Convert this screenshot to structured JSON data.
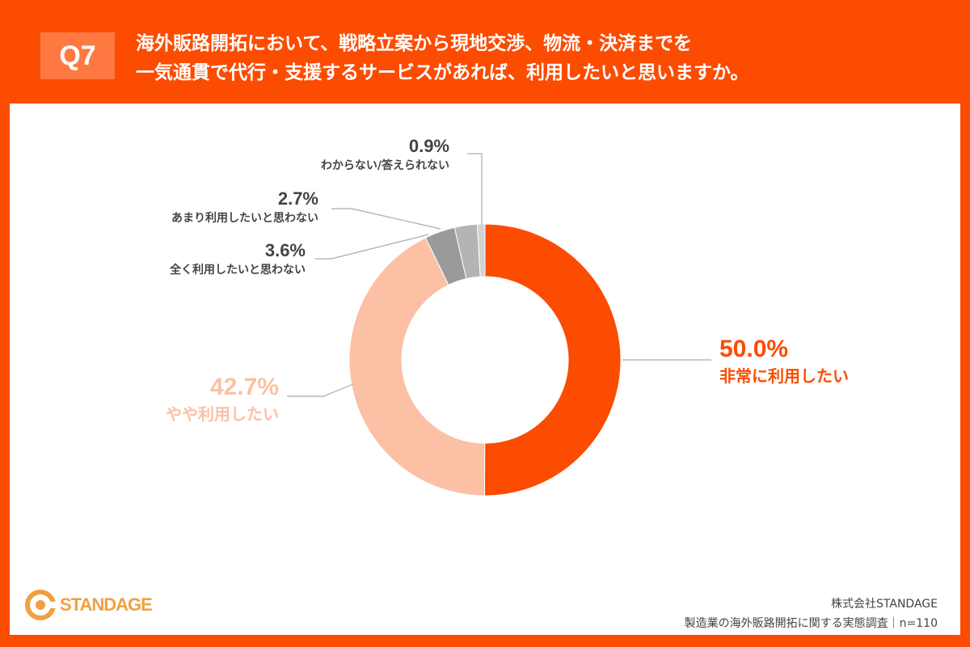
{
  "header": {
    "q": "Q7",
    "title_line1": "海外販路開拓において、戦略立案から現地交渉、物流・決済までを",
    "title_line2": "一気通貫で代行・支援するサービスがあれば、利用したいと思いますか。"
  },
  "chart_data": {
    "type": "pie",
    "donut": true,
    "categories": [
      "非常に利用したい",
      "やや利用したい",
      "全く利用したいと思わない",
      "あまり利用したいと思わない",
      "わからない/答えられない"
    ],
    "values": [
      50.0,
      42.7,
      3.6,
      2.7,
      0.9
    ],
    "labels": [
      "50.0%",
      "42.7%",
      "3.6%",
      "2.7%",
      "0.9%"
    ],
    "colors": [
      "#fc4c02",
      "#fcc0a4",
      "#9a9a9a",
      "#b4b4b4",
      "#d2d2d2"
    ]
  },
  "footer": {
    "logo": "STANDAGE",
    "company": "株式会社STANDAGE",
    "survey": "製造業の海外販路開拓に関する実態調査｜n=110"
  }
}
